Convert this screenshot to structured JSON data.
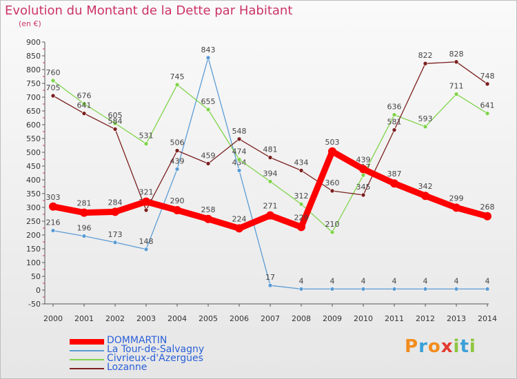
{
  "title": "Evolution du Montant de la Dette par Habitant",
  "subtitle": "(en €)",
  "logo": {
    "text": "Proxiti",
    "colors": [
      "#f28c1e",
      "#3aa0d8",
      "#f28c1e",
      "#e23b2e",
      "#8cc63f",
      "#3aa0d8",
      "#8cc63f"
    ]
  },
  "chart_data": {
    "type": "line",
    "x": [
      "2000",
      "2001",
      "2002",
      "2003",
      "2004",
      "2005",
      "2006",
      "2007",
      "2008",
      "2009",
      "2010",
      "2011",
      "2012",
      "2013",
      "2014"
    ],
    "ylim": [
      -50,
      900
    ],
    "yticks": [
      -50,
      0,
      50,
      100,
      150,
      200,
      250,
      300,
      350,
      400,
      450,
      500,
      550,
      600,
      650,
      700,
      750,
      800,
      850,
      900
    ],
    "grid": false,
    "legend": "bottom-left",
    "series": [
      {
        "name": "DOMMARTIN",
        "color": "#ff0000",
        "values": [
          303,
          281,
          284,
          321,
          290,
          258,
          224,
          271,
          229,
          503,
          439,
          387,
          342,
          299,
          268
        ]
      },
      {
        "name": "La Tour-de-Salvagny",
        "color": "#5b9bd5",
        "values": [
          216,
          196,
          173,
          148,
          439,
          843,
          434,
          17,
          4,
          4,
          4,
          4,
          4,
          4,
          4
        ]
      },
      {
        "name": "Civrieux-d'Azergues",
        "color": "#7fd44a",
        "values": [
          760,
          676,
          605,
          531,
          745,
          655,
          474,
          394,
          312,
          210,
          417,
          636,
          593,
          711,
          641
        ]
      },
      {
        "name": "Lozanne",
        "color": "#7b1f1f",
        "values": [
          705,
          641,
          584,
          290,
          506,
          459,
          548,
          481,
          434,
          360,
          345,
          581,
          822,
          828,
          748
        ]
      }
    ]
  }
}
